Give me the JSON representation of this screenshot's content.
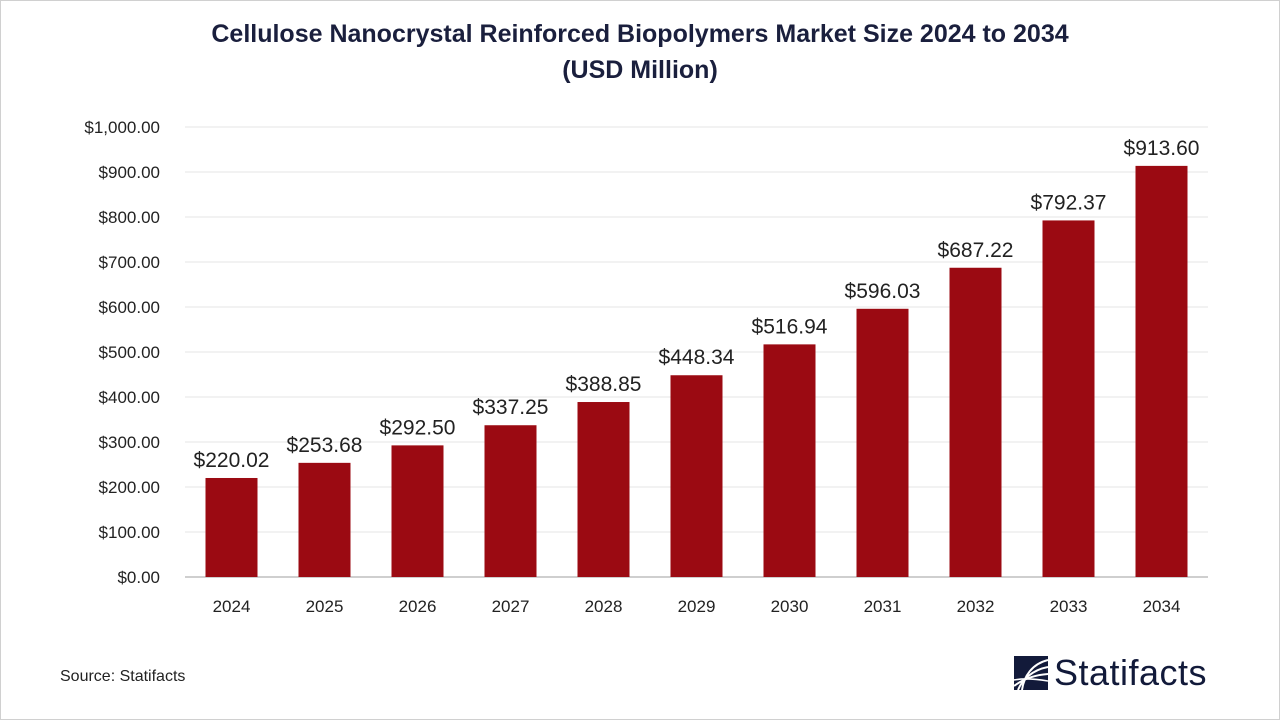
{
  "chart_data": {
    "type": "bar",
    "title": "Cellulose Nanocrystal Reinforced Biopolymers Market Size 2024 to 2034",
    "subtitle": "(USD Million)",
    "categories": [
      "2024",
      "2025",
      "2026",
      "2027",
      "2028",
      "2029",
      "2030",
      "2031",
      "2032",
      "2033",
      "2034"
    ],
    "values": [
      220.02,
      253.68,
      292.5,
      337.25,
      388.85,
      448.34,
      516.94,
      596.03,
      687.22,
      792.37,
      913.6
    ],
    "data_labels": [
      "$220.02",
      "$253.68",
      "$292.50",
      "$337.25",
      "$388.85",
      "$448.34",
      "$516.94",
      "$596.03",
      "$687.22",
      "$792.37",
      "$913.60"
    ],
    "y_ticks": [
      "$0.00",
      "$100.00",
      "$200.00",
      "$300.00",
      "$400.00",
      "$500.00",
      "$600.00",
      "$700.00",
      "$800.00",
      "$900.00",
      "$1,000.00"
    ],
    "ylim": [
      0,
      1000
    ],
    "grid": true,
    "bar_color": "#9b0a12",
    "xlabel": "",
    "ylabel": ""
  },
  "source": "Source: Statifacts",
  "logo": {
    "text": "Statifacts",
    "color": "#121a3a"
  }
}
